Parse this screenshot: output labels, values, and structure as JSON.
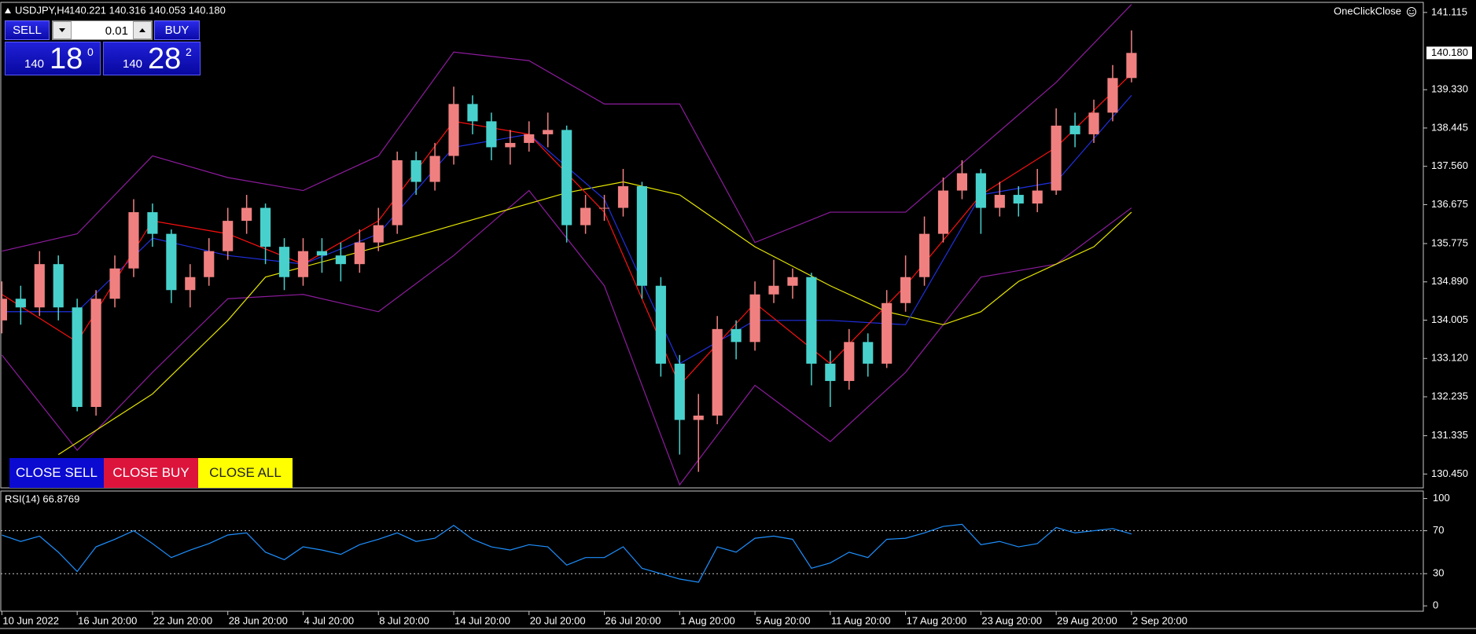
{
  "header": {
    "symbol": "USDJPY,H4",
    "quote": "140.221 140.316 140.053 140.180",
    "one_click_close": "OneClickClose"
  },
  "trade_panel": {
    "sell": "SELL",
    "lots": "0.01",
    "buy": "BUY",
    "bid": {
      "big": "140",
      "main": "18",
      "small": "0"
    },
    "ask": {
      "big": "140",
      "main": "28",
      "small": "2"
    }
  },
  "buttons": [
    "CLOSE SELL",
    "CLOSE BUY",
    "CLOSE ALL"
  ],
  "chart_data": [
    {
      "type": "candlestick",
      "up_color": "#f08080",
      "down_color": "#48d1cc",
      "xlim": [
        -0.1,
        75.5
      ],
      "ylim": [
        130.13,
        141.33
      ],
      "yticks": [
        {
          "value": 141.115,
          "label": "141.115"
        },
        {
          "value": 139.33,
          "label": "139.330"
        },
        {
          "value": 138.445,
          "label": "138.445"
        },
        {
          "value": 137.56,
          "label": "137.560"
        },
        {
          "value": 136.675,
          "label": "136.675"
        },
        {
          "value": 135.775,
          "label": "135.775"
        },
        {
          "value": 134.89,
          "label": "134.890"
        },
        {
          "value": 134.005,
          "label": "134.005"
        },
        {
          "value": 133.12,
          "label": "133.120"
        },
        {
          "value": 132.235,
          "label": "132.235"
        },
        {
          "value": 131.335,
          "label": "131.335"
        },
        {
          "value": 130.45,
          "label": "130.450"
        }
      ],
      "current_price": {
        "value": 140.18,
        "label": "140.180"
      },
      "open": [
        134.0,
        134.5,
        134.3,
        135.3,
        134.3,
        132.0,
        134.5,
        135.2,
        136.5,
        136.0,
        134.7,
        135.0,
        135.6,
        136.3,
        136.6,
        135.7,
        135.0,
        135.6,
        135.5,
        135.3,
        135.8,
        136.2,
        137.7,
        137.2,
        137.8,
        139.0,
        138.6,
        138.0,
        138.1,
        138.3,
        138.4,
        136.2,
        136.6,
        136.6,
        137.1,
        134.8,
        133.0,
        131.7,
        131.8,
        133.8,
        133.5,
        134.6,
        134.8,
        135.0,
        133.0,
        132.6,
        133.5,
        133.0,
        134.4,
        135.0,
        136.0,
        137.0,
        137.4,
        136.6,
        136.9,
        136.7,
        137.0,
        138.5,
        138.3,
        138.8,
        139.6
      ],
      "high": [
        134.9,
        134.8,
        135.6,
        135.5,
        134.5,
        134.7,
        135.5,
        136.8,
        136.7,
        136.1,
        135.3,
        135.9,
        136.6,
        136.9,
        136.7,
        135.9,
        135.9,
        135.9,
        135.8,
        136.1,
        136.6,
        137.9,
        137.9,
        138.1,
        139.4,
        139.2,
        138.8,
        138.4,
        138.6,
        138.8,
        138.5,
        136.9,
        136.9,
        137.5,
        137.2,
        135.0,
        133.2,
        132.3,
        134.1,
        134.0,
        134.9,
        135.4,
        135.2,
        135.1,
        133.3,
        133.8,
        133.7,
        134.7,
        135.5,
        136.4,
        137.3,
        137.7,
        137.5,
        137.2,
        137.1,
        137.5,
        138.9,
        138.8,
        139.1,
        139.9,
        140.7
      ],
      "low": [
        133.7,
        133.9,
        134.1,
        134.0,
        131.9,
        131.8,
        134.3,
        135.0,
        135.7,
        134.4,
        134.3,
        134.8,
        135.4,
        136.0,
        135.3,
        134.7,
        134.8,
        135.1,
        134.9,
        135.1,
        135.6,
        136.0,
        136.9,
        137.0,
        137.6,
        138.3,
        137.7,
        137.6,
        137.9,
        138.0,
        135.8,
        136.0,
        136.3,
        136.4,
        134.5,
        132.7,
        130.9,
        130.5,
        131.6,
        133.1,
        133.3,
        134.4,
        134.5,
        132.5,
        132.0,
        132.4,
        132.7,
        132.9,
        134.2,
        134.8,
        135.8,
        136.8,
        136.0,
        136.4,
        136.4,
        136.5,
        136.9,
        138.0,
        138.1,
        138.6,
        139.5
      ],
      "close": [
        134.5,
        134.3,
        135.3,
        134.3,
        132.0,
        134.5,
        135.2,
        136.5,
        136.0,
        134.7,
        135.0,
        135.6,
        136.3,
        136.6,
        135.7,
        135.0,
        135.6,
        135.5,
        135.3,
        135.8,
        136.2,
        137.7,
        137.2,
        137.8,
        139.0,
        138.6,
        138.0,
        138.1,
        138.3,
        138.4,
        136.2,
        136.6,
        136.6,
        137.1,
        134.8,
        133.0,
        131.7,
        131.8,
        133.8,
        133.5,
        134.6,
        134.8,
        135.0,
        133.0,
        132.6,
        133.5,
        133.0,
        134.4,
        135.0,
        136.0,
        137.0,
        137.4,
        136.6,
        136.9,
        136.7,
        137.0,
        138.5,
        138.3,
        138.8,
        139.6,
        140.18
      ],
      "series": [
        {
          "color": "#8e1c9e",
          "x": [
            0,
            4,
            8,
            12,
            16,
            20,
            24,
            28,
            32,
            36,
            40,
            44,
            48,
            52,
            56,
            60
          ],
          "values": [
            135.6,
            136.0,
            137.8,
            137.3,
            137.0,
            137.8,
            140.2,
            140.0,
            139.0,
            139.0,
            135.8,
            136.5,
            136.5,
            138.0,
            139.5,
            141.3
          ]
        },
        {
          "color": "#8e1c9e",
          "x": [
            0,
            4,
            8,
            12,
            16,
            20,
            24,
            28,
            32,
            36,
            40,
            44,
            48,
            52,
            56,
            60
          ],
          "values": [
            133.2,
            131.0,
            132.8,
            134.5,
            134.6,
            134.2,
            135.5,
            137.0,
            134.8,
            130.2,
            132.5,
            131.2,
            132.8,
            135.0,
            135.3,
            136.6
          ]
        },
        {
          "color": "#e6e600",
          "x": [
            3,
            8,
            12,
            14,
            20,
            24,
            30,
            33,
            36,
            40,
            44,
            47,
            50,
            52,
            54,
            56,
            58,
            60
          ],
          "values": [
            130.9,
            132.3,
            134.0,
            135.0,
            135.7,
            136.2,
            136.95,
            137.2,
            136.9,
            135.7,
            134.8,
            134.2,
            133.9,
            134.2,
            134.9,
            135.3,
            135.7,
            136.5
          ]
        },
        {
          "color": "#2030e0",
          "x": [
            0,
            4,
            8,
            12,
            16,
            20,
            24,
            28,
            32,
            36,
            40,
            44,
            48,
            52,
            56,
            60
          ],
          "values": [
            134.2,
            134.2,
            135.9,
            135.5,
            135.3,
            136.0,
            138.0,
            138.3,
            136.8,
            133.0,
            134.0,
            134.0,
            133.9,
            136.9,
            137.2,
            139.2
          ]
        },
        {
          "color": "#ff1010",
          "x": [
            0,
            4,
            8,
            12,
            16,
            20,
            24,
            28,
            32,
            36,
            40,
            44,
            48,
            52,
            56,
            60
          ],
          "values": [
            134.6,
            133.5,
            136.3,
            136.0,
            135.3,
            136.3,
            138.6,
            138.3,
            136.5,
            132.5,
            134.4,
            133.0,
            134.8,
            136.9,
            138.0,
            139.7
          ]
        }
      ]
    },
    {
      "type": "line",
      "title": "RSI(14) 66.8769",
      "color": "#1e90ff",
      "xlim": [
        -0.1,
        75.5
      ],
      "ylim": [
        -5,
        107
      ],
      "yticks": [
        0,
        30,
        70,
        100
      ],
      "levels": [
        30,
        70
      ],
      "values": [
        66,
        60,
        65,
        50,
        32,
        55,
        62,
        70,
        58,
        45,
        52,
        58,
        66,
        68,
        50,
        43,
        55,
        52,
        48,
        57,
        62,
        68,
        60,
        63,
        75,
        62,
        55,
        52,
        57,
        55,
        38,
        45,
        45,
        55,
        35,
        30,
        25,
        22,
        55,
        50,
        63,
        65,
        62,
        35,
        40,
        50,
        45,
        62,
        63,
        68,
        74,
        76,
        57,
        60,
        55,
        58,
        73,
        68,
        70,
        72,
        67
      ],
      "xticks": [
        {
          "value": 0,
          "label": "10 Jun 2022"
        },
        {
          "value": 4,
          "label": "16 Jun 20:00"
        },
        {
          "value": 8,
          "label": "22 Jun 20:00"
        },
        {
          "value": 12,
          "label": "28 Jun 20:00"
        },
        {
          "value": 16,
          "label": "4 Jul 20:00"
        },
        {
          "value": 20,
          "label": "8 Jul 20:00"
        },
        {
          "value": 24,
          "label": "14 Jul 20:00"
        },
        {
          "value": 28,
          "label": "20 Jul 20:00"
        },
        {
          "value": 32,
          "label": "26 Jul 20:00"
        },
        {
          "value": 36,
          "label": "1 Aug 20:00"
        },
        {
          "value": 40,
          "label": "5 Aug 20:00"
        },
        {
          "value": 44,
          "label": "11 Aug 20:00"
        },
        {
          "value": 48,
          "label": "17 Aug 20:00"
        },
        {
          "value": 52,
          "label": "23 Aug 20:00"
        },
        {
          "value": 56,
          "label": "29 Aug 20:00"
        },
        {
          "value": 60,
          "label": "2 Sep 20:00"
        }
      ]
    }
  ]
}
